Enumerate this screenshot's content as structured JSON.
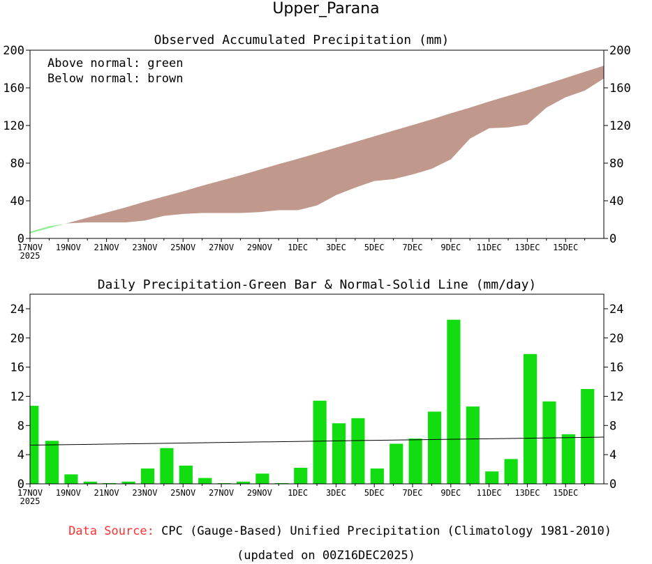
{
  "page_title": "Upper_Parana",
  "colors": {
    "above": "#90ee90",
    "below": "#c0988c",
    "bar": "#11dd11",
    "axis": "#000000",
    "source_label": "#ff3030"
  },
  "footer": {
    "source_label": "Data Source:",
    "source_text": "CPC (Gauge-Based) Unified Precipitation (Climatology 1981-2010)",
    "updated": "(updated on 00Z16DEC2025)"
  },
  "chart_data": [
    {
      "type": "area",
      "title": "Observed Accumulated Precipitation (mm)",
      "legend": [
        "Above normal: green",
        "Below normal: brown"
      ],
      "ylim": [
        0,
        200
      ],
      "yticks": [
        "0",
        "40",
        "80",
        "120",
        "160",
        "200"
      ],
      "x_tick_labels": [
        "17NOV",
        "19NOV",
        "21NOV",
        "23NOV",
        "25NOV",
        "27NOV",
        "29NOV",
        "1DEC",
        "3DEC",
        "5DEC",
        "7DEC",
        "9DEC",
        "11DEC",
        "13DEC",
        "15DEC"
      ],
      "x_start_year": "2025",
      "series": [
        {
          "name": "Observed",
          "values": [
            7,
            13,
            16,
            17,
            17,
            17,
            19,
            24,
            26,
            27,
            27,
            27,
            28,
            30,
            30,
            35,
            46,
            54,
            61,
            63,
            68,
            74,
            84,
            106,
            117,
            118,
            121,
            139,
            150,
            157,
            170
          ]
        },
        {
          "name": "Normal",
          "values": [
            5.5,
            11,
            16.5,
            22,
            27.5,
            33,
            39,
            44.5,
            50,
            56,
            61.5,
            67,
            73,
            79,
            84.5,
            90.5,
            96.5,
            102.5,
            108.5,
            114.5,
            120.5,
            126.5,
            133,
            139,
            145.5,
            151.5,
            157.5,
            164,
            170.5,
            177,
            183.5
          ]
        }
      ]
    },
    {
      "type": "bar",
      "title": "Daily Precipitation-Green Bar & Normal-Solid Line (mm/day)",
      "ylim": [
        0,
        26
      ],
      "yticks": [
        "0",
        "4",
        "8",
        "12",
        "16",
        "20",
        "24"
      ],
      "x_tick_labels": [
        "17NOV",
        "19NOV",
        "21NOV",
        "23NOV",
        "25NOV",
        "27NOV",
        "29NOV",
        "1DEC",
        "3DEC",
        "5DEC",
        "7DEC",
        "9DEC",
        "11DEC",
        "13DEC",
        "15DEC"
      ],
      "x_start_year": "2025",
      "series": [
        {
          "name": "Daily Precipitation",
          "values": [
            10.7,
            5.9,
            1.3,
            0.3,
            0.1,
            0.3,
            2.1,
            4.9,
            2.5,
            0.8,
            0.1,
            0.3,
            1.4,
            0.1,
            2.2,
            11.4,
            8.3,
            9.0,
            2.1,
            5.5,
            6.2,
            9.9,
            22.5,
            10.6,
            1.7,
            3.4,
            17.8,
            11.3,
            6.8,
            13.0
          ]
        },
        {
          "name": "Normal",
          "values": [
            5.3,
            6.4
          ]
        }
      ]
    }
  ]
}
